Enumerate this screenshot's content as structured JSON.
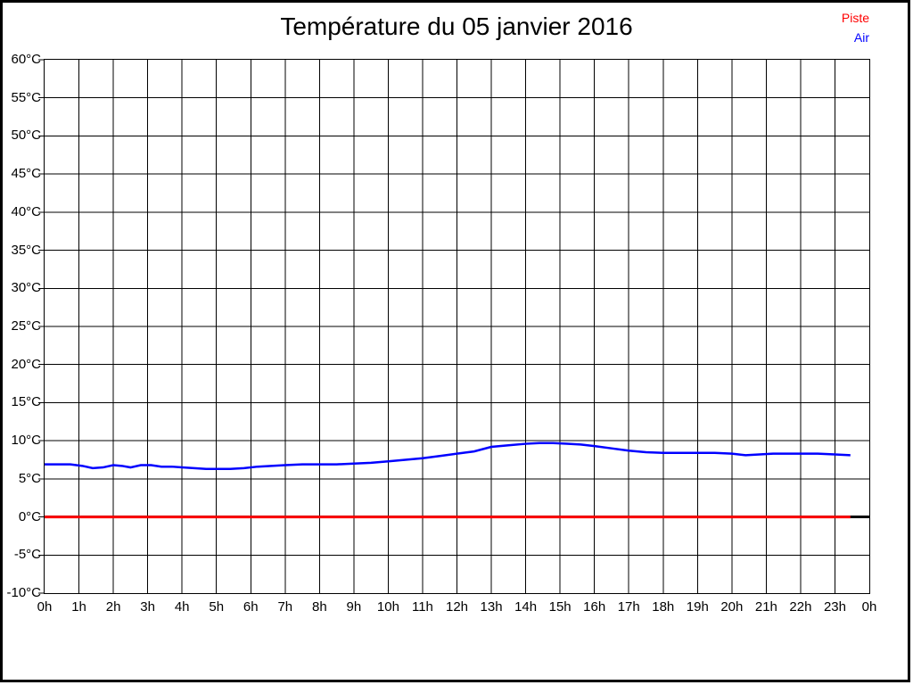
{
  "title": "Température du 05 janvier 2016",
  "legend": {
    "items": [
      {
        "label": "Piste",
        "color": "#ff0000"
      },
      {
        "label": "Air",
        "color": "#0000ff"
      }
    ]
  },
  "chart_data": {
    "type": "line",
    "title": "Température du 05 janvier 2016",
    "xlabel": "",
    "ylabel": "",
    "grid": true,
    "legend_position": "top-right",
    "x_axis": {
      "min": 0,
      "max": 24,
      "unit": "h",
      "tick_labels": [
        "0h",
        "1h",
        "2h",
        "3h",
        "4h",
        "5h",
        "6h",
        "7h",
        "8h",
        "9h",
        "10h",
        "11h",
        "12h",
        "13h",
        "14h",
        "15h",
        "16h",
        "17h",
        "18h",
        "19h",
        "20h",
        "21h",
        "22h",
        "23h",
        "0h"
      ]
    },
    "y_axis": {
      "min": -10,
      "max": 60,
      "tick_step": 5,
      "unit": "°C",
      "tick_labels_top_to_bottom": [
        "60°C",
        "55°C",
        "50°C",
        "45°C",
        "40°C",
        "35°C",
        "30°C",
        "25°C",
        "20°C",
        "15°C",
        "10°C",
        "5°C",
        "0°C",
        "-5°C",
        "-10°C"
      ]
    },
    "zero_axis_line": {
      "value": 0,
      "color": "#000000"
    },
    "series": [
      {
        "name": "Piste",
        "color": "#ff0000",
        "x": [
          0,
          23.45
        ],
        "values": [
          0,
          0
        ]
      },
      {
        "name": "Air",
        "color": "#0000ff",
        "x": [
          0,
          0.75,
          1.1,
          1.4,
          1.7,
          2.0,
          2.25,
          2.5,
          2.8,
          3.1,
          3.4,
          3.7,
          4.0,
          4.35,
          4.7,
          5.0,
          5.4,
          5.8,
          6.2,
          6.6,
          7.0,
          7.5,
          8.0,
          8.5,
          9.0,
          9.5,
          10.0,
          10.5,
          11.0,
          11.5,
          12.0,
          12.5,
          13.0,
          13.5,
          14.0,
          14.4,
          14.8,
          15.2,
          15.6,
          16.0,
          16.5,
          17.0,
          17.5,
          18.0,
          18.5,
          19.0,
          19.5,
          20.0,
          20.4,
          20.8,
          21.2,
          21.6,
          22.0,
          22.5,
          23.0,
          23.45
        ],
        "values": [
          6.9,
          6.9,
          6.7,
          6.4,
          6.5,
          6.8,
          6.7,
          6.5,
          6.8,
          6.8,
          6.6,
          6.6,
          6.5,
          6.4,
          6.3,
          6.3,
          6.3,
          6.4,
          6.6,
          6.7,
          6.8,
          6.9,
          6.9,
          6.9,
          7.0,
          7.1,
          7.3,
          7.5,
          7.7,
          8.0,
          8.3,
          8.6,
          9.2,
          9.4,
          9.6,
          9.7,
          9.7,
          9.6,
          9.5,
          9.3,
          9.0,
          8.7,
          8.5,
          8.4,
          8.4,
          8.4,
          8.4,
          8.3,
          8.1,
          8.2,
          8.3,
          8.3,
          8.3,
          8.3,
          8.2,
          8.1
        ]
      }
    ]
  }
}
